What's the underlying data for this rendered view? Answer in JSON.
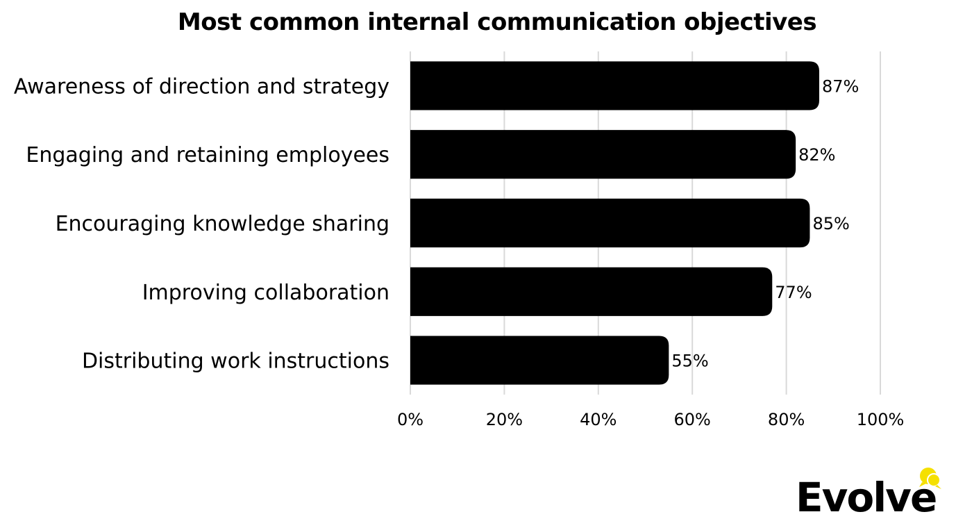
{
  "chart_data": {
    "type": "bar",
    "orientation": "horizontal",
    "title": "Most common internal communication objectives",
    "categories": [
      "Awareness of direction and strategy",
      "Engaging and retaining employees",
      "Encouraging knowledge sharing",
      "Improving collaboration",
      "Distributing work instructions"
    ],
    "values": [
      87,
      82,
      85,
      77,
      55
    ],
    "value_labels": [
      "87%",
      "82%",
      "85%",
      "77%",
      "55%"
    ],
    "xlim": [
      0,
      100
    ],
    "x_ticks": [
      "0%",
      "20%",
      "40%",
      "60%",
      "80%",
      "100%"
    ],
    "x_tick_values": [
      0,
      20,
      40,
      60,
      80,
      100
    ],
    "grid": true,
    "bar_color": "#000000",
    "grid_color": "#d9d9d9"
  },
  "brand": {
    "name": "Evolve",
    "accent_color": "#f5e000",
    "icon": "speech-bubbles-icon"
  }
}
